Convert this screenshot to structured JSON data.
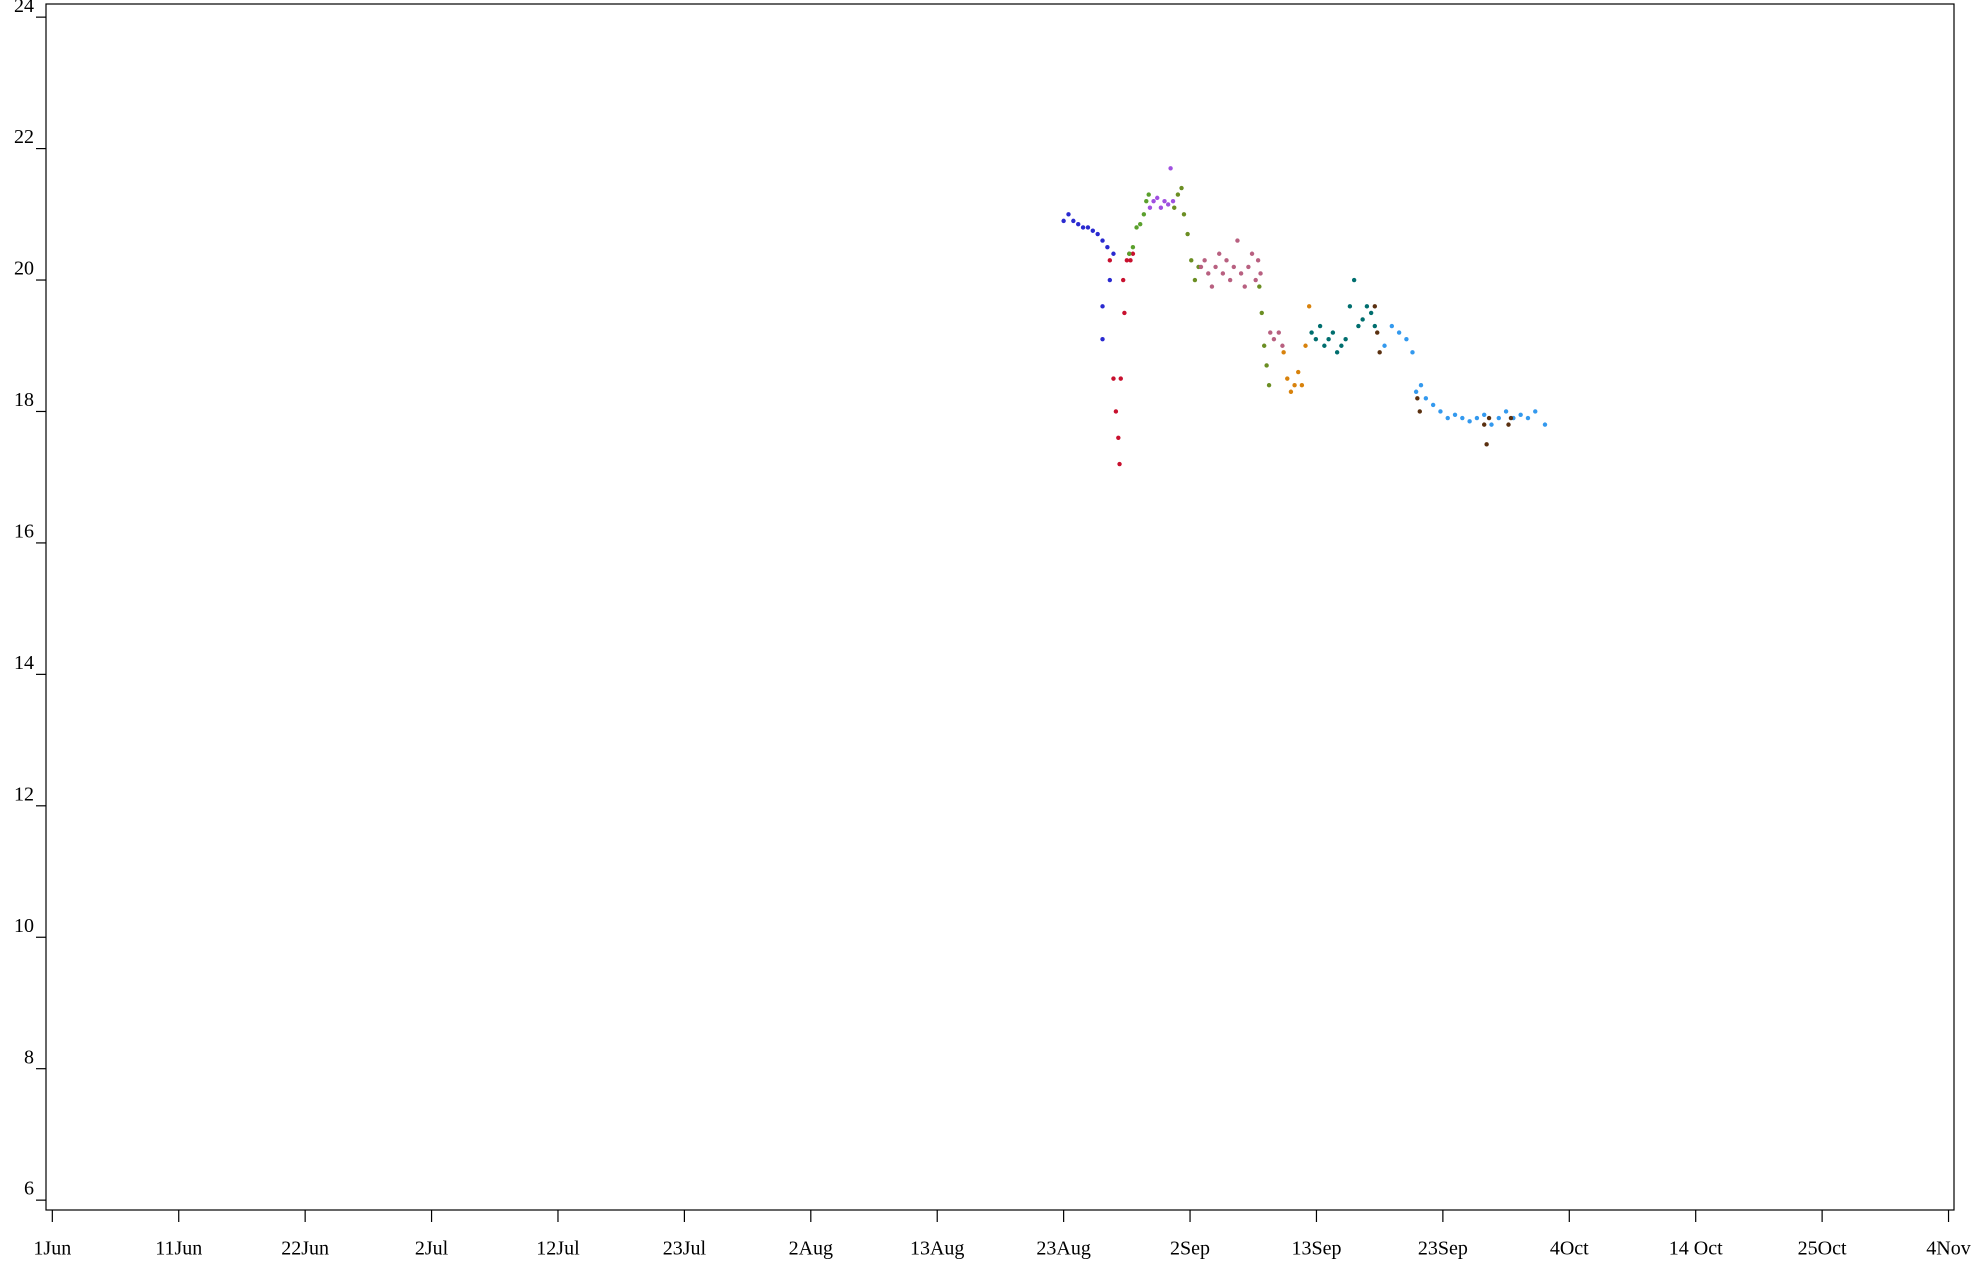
{
  "chart_data": {
    "type": "scatter",
    "xlim": [
      -0.52,
      156.45
    ],
    "ylim": [
      5.85,
      24.2
    ],
    "xticks": [
      {
        "value": 0,
        "label": "1Jun"
      },
      {
        "value": 10.4,
        "label": "11Jun"
      },
      {
        "value": 20.8,
        "label": "22Jun"
      },
      {
        "value": 31.2,
        "label": "2Jul"
      },
      {
        "value": 41.6,
        "label": "12Jul"
      },
      {
        "value": 52,
        "label": "23Jul"
      },
      {
        "value": 62.4,
        "label": "2Aug"
      },
      {
        "value": 72.8,
        "label": "13Aug"
      },
      {
        "value": 83.2,
        "label": "23Aug"
      },
      {
        "value": 93.6,
        "label": "2Sep"
      },
      {
        "value": 104,
        "label": "13Sep"
      },
      {
        "value": 114.4,
        "label": "23Sep"
      },
      {
        "value": 124.8,
        "label": "4Oct"
      },
      {
        "value": 135.2,
        "label": "14 Oct"
      },
      {
        "value": 145.6,
        "label": "25Oct"
      },
      {
        "value": 156,
        "label": "4Nov"
      }
    ],
    "yticks": [
      6,
      8,
      10,
      12,
      14,
      16,
      18,
      20,
      22,
      24
    ],
    "series": [
      {
        "color": "#2a2ad0",
        "x": [
          83.2,
          83.6,
          84.0,
          84.4,
          84.8,
          85.2,
          85.6,
          86.0,
          86.4,
          86.4,
          86.4,
          86.8,
          87.0,
          87.3
        ],
        "values": [
          20.9,
          21.0,
          20.9,
          20.85,
          20.8,
          20.8,
          20.75,
          20.7,
          20.6,
          19.6,
          19.1,
          20.5,
          20.0,
          20.4
        ]
      },
      {
        "color": "#c8102e",
        "x": [
          87.0,
          87.3,
          87.5,
          87.7,
          87.8,
          87.9,
          88.1,
          88.2,
          88.4,
          88.6,
          88.7,
          88.9
        ],
        "values": [
          20.3,
          18.5,
          18.0,
          17.6,
          17.2,
          18.5,
          20.0,
          19.5,
          20.3,
          20.4,
          20.3,
          20.4
        ]
      },
      {
        "color": "#5aa02c",
        "x": [
          88.6,
          88.9,
          89.2,
          89.5,
          89.8,
          90.0,
          90.2
        ],
        "values": [
          20.4,
          20.5,
          20.8,
          20.85,
          21.0,
          21.2,
          21.3
        ]
      },
      {
        "color": "#a050e0",
        "x": [
          90.3,
          90.6,
          90.9,
          91.2,
          91.5,
          91.8,
          92.0,
          92.2
        ],
        "values": [
          21.1,
          21.2,
          21.25,
          21.1,
          21.2,
          21.15,
          21.7,
          21.2
        ]
      },
      {
        "color": "#6b8e23",
        "x": [
          92.3,
          92.6,
          92.9,
          93.1,
          93.4,
          93.7,
          94.0,
          94.3,
          99.3,
          99.5,
          99.7,
          99.9,
          100.1
        ],
        "values": [
          21.1,
          21.3,
          21.4,
          21.0,
          20.7,
          20.3,
          20.0,
          20.2,
          19.9,
          19.5,
          19.0,
          18.7,
          18.4
        ]
      },
      {
        "color": "#b86080",
        "x": [
          94.5,
          94.8,
          95.1,
          95.4,
          95.7,
          96.0,
          96.3,
          96.6,
          96.9,
          97.2,
          97.5,
          97.8,
          98.1,
          98.4,
          98.7,
          99.0,
          99.2,
          99.4,
          100.2,
          100.5,
          100.9,
          101.2
        ],
        "values": [
          20.2,
          20.3,
          20.1,
          19.9,
          20.2,
          20.4,
          20.1,
          20.3,
          20.0,
          20.2,
          20.6,
          20.1,
          19.9,
          20.2,
          20.4,
          20.0,
          20.3,
          20.1,
          19.2,
          19.1,
          19.2,
          19.0
        ]
      },
      {
        "color": "#d8820c",
        "x": [
          101.3,
          101.6,
          101.9,
          102.2,
          102.5,
          102.8,
          103.1,
          103.4
        ],
        "values": [
          18.9,
          18.5,
          18.3,
          18.4,
          18.6,
          18.4,
          19.0,
          19.6
        ]
      },
      {
        "color": "#006e6e",
        "x": [
          103.6,
          103.95,
          104.3,
          104.65,
          105.0,
          105.35,
          105.7,
          106.05,
          106.4,
          106.75,
          107.1,
          107.45,
          107.8,
          108.15,
          108.5,
          108.8
        ],
        "values": [
          19.2,
          19.1,
          19.3,
          19.0,
          19.1,
          19.2,
          18.9,
          19.0,
          19.1,
          19.6,
          20.0,
          19.3,
          19.4,
          19.6,
          19.5,
          19.3
        ]
      },
      {
        "color": "#3399ee",
        "x": [
          109.6,
          110.2,
          110.8,
          111.4,
          111.9,
          112.2,
          112.6,
          113.0,
          113.6,
          114.2,
          114.8,
          115.4,
          116.0,
          116.6,
          117.2,
          117.8,
          118.4,
          119.0,
          119.6,
          120.2,
          120.8,
          121.4,
          122.0,
          122.8
        ],
        "values": [
          19.0,
          19.3,
          19.2,
          19.1,
          18.9,
          18.3,
          18.4,
          18.2,
          18.1,
          18.0,
          17.9,
          17.95,
          17.9,
          17.85,
          17.9,
          17.95,
          17.8,
          17.9,
          18.0,
          17.9,
          17.95,
          17.9,
          18.0,
          17.8
        ]
      },
      {
        "color": "#5a3010",
        "x": [
          108.8,
          109.0,
          109.2,
          112.3,
          112.5,
          117.8,
          118.0,
          118.2,
          119.8,
          120.0
        ],
        "values": [
          19.6,
          19.2,
          18.9,
          18.2,
          18.0,
          17.8,
          17.5,
          17.9,
          17.8,
          17.9
        ]
      }
    ]
  }
}
